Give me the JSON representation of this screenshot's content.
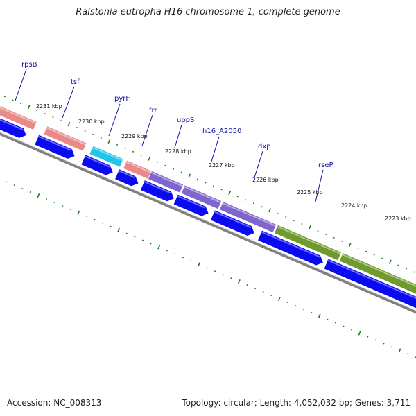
{
  "title": "Ralstonia eutropha H16 chromosome 1, complete genome",
  "footer": {
    "accession": "Accession: NC_008313",
    "summary": "Topology: circular; Length: 4,052,032 bp; Genes: 3,711"
  },
  "colors": {
    "backbone": "#808080",
    "cds_strand": "#0a0af0",
    "tick": "#1a7a1a",
    "rRNA_pink": "#e88a8a",
    "cyan": "#22c4ec",
    "purple": "#7f66cc",
    "olive": "#6f9a2c"
  },
  "kbp_labels": [
    "2231 kbp",
    "2230 kbp",
    "2229 kbp",
    "2228 kbp",
    "2227 kbp",
    "2226 kbp",
    "2225 kbp",
    "2224 kbp",
    "2223 kbp"
  ],
  "genes": [
    {
      "label": "rpsB",
      "color": "#e88a8a"
    },
    {
      "label": "tsf",
      "color": "#e88a8a"
    },
    {
      "label": "pyrH",
      "color": "#22c4ec"
    },
    {
      "label": "frr",
      "color": "#e88a8a"
    },
    {
      "label": "uppS",
      "color": "#7f66cc"
    },
    {
      "label": "h16_A2050",
      "color": "#7f66cc"
    },
    {
      "label": "dxp",
      "color": "#7f66cc"
    },
    {
      "label": "rseP",
      "color": "#6f9a2c"
    }
  ]
}
